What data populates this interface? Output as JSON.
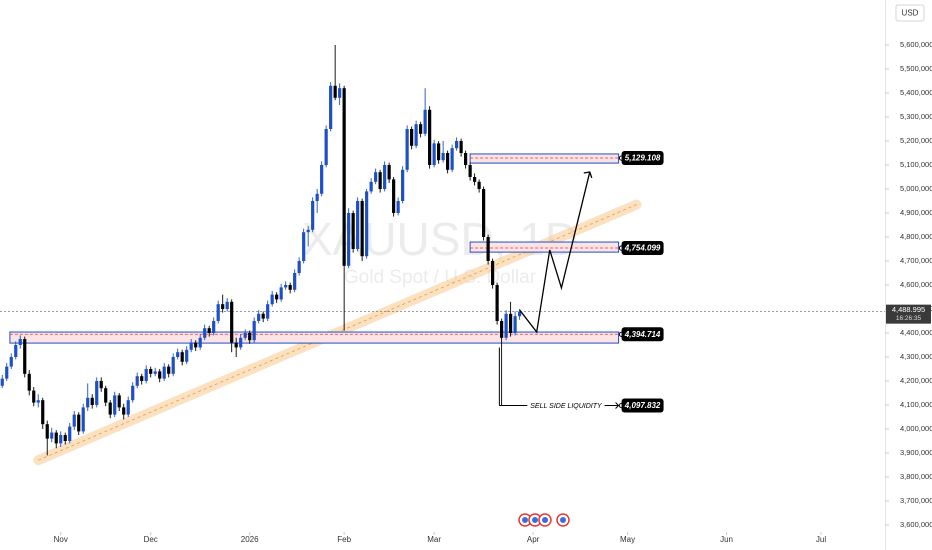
{
  "chart_data": {
    "type": "candlestick",
    "watermark": "XAUUSD, 1D",
    "watermark_subtitle": "Gold Spot / U.S. Dollar",
    "currency": "USD",
    "up_color": "#1f4fc5",
    "down_color": "#000000",
    "grid": false,
    "xlim": [
      -13.5,
      183
    ],
    "xticks": [
      {
        "value": 0,
        "label": "Nov"
      },
      {
        "value": 20,
        "label": "Dec"
      },
      {
        "value": 42,
        "label": "2026"
      },
      {
        "value": 63,
        "label": "Feb"
      },
      {
        "value": 83,
        "label": "Mar"
      },
      {
        "value": 105,
        "label": "Apr"
      },
      {
        "value": 126,
        "label": "May"
      },
      {
        "value": 148,
        "label": "Jun"
      },
      {
        "value": 169,
        "label": "Jul"
      }
    ],
    "ylim": [
      3550000,
      5750000
    ],
    "yticks": [
      {
        "value": 3600000,
        "label": "3,600,000"
      },
      {
        "value": 3700000,
        "label": "3,700,000"
      },
      {
        "value": 3800000,
        "label": "3,800,000"
      },
      {
        "value": 3900000,
        "label": "3,900,000"
      },
      {
        "value": 4000000,
        "label": "4,000,000"
      },
      {
        "value": 4100000,
        "label": "4,100,000"
      },
      {
        "value": 4200000,
        "label": "4,200,000"
      },
      {
        "value": 4300000,
        "label": "4,300,000"
      },
      {
        "value": 4400000,
        "label": "4,400,000"
      },
      {
        "value": 4500000,
        "label": "4,500,000"
      },
      {
        "value": 4600000,
        "label": "4,600,000"
      },
      {
        "value": 4700000,
        "label": "4,700,000"
      },
      {
        "value": 4800000,
        "label": "4,800,000"
      },
      {
        "value": 4900000,
        "label": "4,900,000"
      },
      {
        "value": 5000000,
        "label": "5,000,000"
      },
      {
        "value": 5100000,
        "label": "5,100,000"
      },
      {
        "value": 5200000,
        "label": "5,200,000"
      },
      {
        "value": 5300000,
        "label": "5,300,000"
      },
      {
        "value": 5400000,
        "label": "5,400,000"
      },
      {
        "value": 5500000,
        "label": "5,500,000"
      },
      {
        "value": 5600000,
        "label": "5,600,000"
      }
    ],
    "x": [
      -13,
      -12,
      -11,
      -10,
      -9,
      -8,
      -7,
      -6,
      -5,
      -4,
      -3,
      -2,
      -1,
      0,
      1,
      2,
      3,
      4,
      5,
      6,
      7,
      8,
      9,
      10,
      11,
      12,
      13,
      14,
      15,
      16,
      17,
      18,
      19,
      20,
      21,
      22,
      23,
      24,
      25,
      26,
      27,
      28,
      29,
      30,
      31,
      32,
      33,
      34,
      35,
      36,
      37,
      38,
      39,
      40,
      41,
      42,
      43,
      44,
      45,
      46,
      47,
      48,
      49,
      50,
      51,
      52,
      53,
      54,
      55,
      56,
      57,
      58,
      59,
      60,
      61,
      62,
      63,
      64,
      65,
      66,
      67,
      68,
      69,
      70,
      71,
      72,
      73,
      74,
      75,
      76,
      77,
      78,
      79,
      80,
      81,
      82,
      83,
      84,
      85,
      86,
      87,
      88,
      89,
      90,
      91,
      92,
      93,
      94,
      95,
      96,
      97,
      98,
      99,
      100,
      101,
      102
    ],
    "candles": [
      [
        4180000,
        4225000,
        4170000,
        4210000
      ],
      [
        4210000,
        4275000,
        4200000,
        4260000
      ],
      [
        4260000,
        4315000,
        4250000,
        4300000
      ],
      [
        4300000,
        4365000,
        4290000,
        4350000
      ],
      [
        4350000,
        4390000,
        4335000,
        4375000
      ],
      [
        4375000,
        4385000,
        4215000,
        4230000
      ],
      [
        4230000,
        4245000,
        4140000,
        4160000
      ],
      [
        4160000,
        4175000,
        4095000,
        4110000
      ],
      [
        4110000,
        4145000,
        4090000,
        4120000
      ],
      [
        4120000,
        4130000,
        4000000,
        4020000
      ],
      [
        4020000,
        4035000,
        3890000,
        3960000
      ],
      [
        3960000,
        4005000,
        3945000,
        3985000
      ],
      [
        3985000,
        3995000,
        3920000,
        3940000
      ],
      [
        3940000,
        3990000,
        3925000,
        3975000
      ],
      [
        3975000,
        3985000,
        3935000,
        3950000
      ],
      [
        3950000,
        4025000,
        3940000,
        4010000
      ],
      [
        4010000,
        4075000,
        3995000,
        4060000
      ],
      [
        4060000,
        4070000,
        3975000,
        3990000
      ],
      [
        3990000,
        4105000,
        3980000,
        4090000
      ],
      [
        4090000,
        4190000,
        4075000,
        4130000
      ],
      [
        4130000,
        4145000,
        4085000,
        4100000
      ],
      [
        4100000,
        4215000,
        4090000,
        4200000
      ],
      [
        4200000,
        4215000,
        4155000,
        4170000
      ],
      [
        4170000,
        4180000,
        4095000,
        4110000
      ],
      [
        4110000,
        4120000,
        4045000,
        4060000
      ],
      [
        4060000,
        4155000,
        4050000,
        4140000
      ],
      [
        4140000,
        4150000,
        4075000,
        4090000
      ],
      [
        4090000,
        4105000,
        4040000,
        4060000
      ],
      [
        4060000,
        4135000,
        4050000,
        4120000
      ],
      [
        4120000,
        4195000,
        4110000,
        4180000
      ],
      [
        4180000,
        4235000,
        4170000,
        4220000
      ],
      [
        4220000,
        4230000,
        4185000,
        4200000
      ],
      [
        4200000,
        4265000,
        4190000,
        4250000
      ],
      [
        4250000,
        4260000,
        4215000,
        4230000
      ],
      [
        4230000,
        4255000,
        4220000,
        4240000
      ],
      [
        4240000,
        4250000,
        4195000,
        4210000
      ],
      [
        4210000,
        4275000,
        4200000,
        4260000
      ],
      [
        4260000,
        4270000,
        4215000,
        4230000
      ],
      [
        4230000,
        4315000,
        4220000,
        4300000
      ],
      [
        4300000,
        4335000,
        4290000,
        4320000
      ],
      [
        4320000,
        4330000,
        4265000,
        4280000
      ],
      [
        4280000,
        4345000,
        4270000,
        4330000
      ],
      [
        4330000,
        4375000,
        4320000,
        4360000
      ],
      [
        4360000,
        4370000,
        4325000,
        4340000
      ],
      [
        4340000,
        4395000,
        4330000,
        4380000
      ],
      [
        4380000,
        4435000,
        4370000,
        4420000
      ],
      [
        4420000,
        4430000,
        4385000,
        4400000
      ],
      [
        4400000,
        4465000,
        4390000,
        4450000
      ],
      [
        4450000,
        4535000,
        4440000,
        4520000
      ],
      [
        4520000,
        4560000,
        4485000,
        4500000
      ],
      [
        4500000,
        4545000,
        4490000,
        4530000
      ],
      [
        4530000,
        4540000,
        4320000,
        4360000
      ],
      [
        4360000,
        4380000,
        4300000,
        4340000
      ],
      [
        4340000,
        4395000,
        4330000,
        4380000
      ],
      [
        4380000,
        4415000,
        4370000,
        4400000
      ],
      [
        4400000,
        4410000,
        4355000,
        4370000
      ],
      [
        4370000,
        4465000,
        4360000,
        4450000
      ],
      [
        4450000,
        4495000,
        4440000,
        4480000
      ],
      [
        4480000,
        4490000,
        4445000,
        4460000
      ],
      [
        4460000,
        4535000,
        4450000,
        4520000
      ],
      [
        4520000,
        4575000,
        4510000,
        4560000
      ],
      [
        4560000,
        4570000,
        4525000,
        4540000
      ],
      [
        4540000,
        4605000,
        4530000,
        4590000
      ],
      [
        4590000,
        4615000,
        4580000,
        4600000
      ],
      [
        4600000,
        4610000,
        4565000,
        4580000
      ],
      [
        4580000,
        4665000,
        4570000,
        4650000
      ],
      [
        4650000,
        4715000,
        4640000,
        4700000
      ],
      [
        4700000,
        4835000,
        4690000,
        4820000
      ],
      [
        4820000,
        4845000,
        4760000,
        4830000
      ],
      [
        4830000,
        4965000,
        4820000,
        4950000
      ],
      [
        4950000,
        5000000,
        4900000,
        4980000
      ],
      [
        4980000,
        5115000,
        4970000,
        5100000
      ],
      [
        5100000,
        5265000,
        5090000,
        5250000
      ],
      [
        5250000,
        5445000,
        5240000,
        5430000
      ],
      [
        5430000,
        5600000,
        5370000,
        5380000
      ],
      [
        5380000,
        5440000,
        5350000,
        5420000
      ],
      [
        5420000,
        5430000,
        4410000,
        4680000
      ],
      [
        4680000,
        4920000,
        4670000,
        4900000
      ],
      [
        4900000,
        4910000,
        4735000,
        4750000
      ],
      [
        4750000,
        4965000,
        4740000,
        4950000
      ],
      [
        4950000,
        4960000,
        4700000,
        4720000
      ],
      [
        4720000,
        5000000,
        4710000,
        4990000
      ],
      [
        4990000,
        5045000,
        4980000,
        5030000
      ],
      [
        5030000,
        5085000,
        5020000,
        5070000
      ],
      [
        5070000,
        5080000,
        4985000,
        5000000
      ],
      [
        5000000,
        5115000,
        4990000,
        5100000
      ],
      [
        5100000,
        5110000,
        5025000,
        5040000
      ],
      [
        5040000,
        5050000,
        4885000,
        4900000
      ],
      [
        4900000,
        4965000,
        4890000,
        4950000
      ],
      [
        4950000,
        5095000,
        4940000,
        5080000
      ],
      [
        5080000,
        5265000,
        5070000,
        5250000
      ],
      [
        5250000,
        5260000,
        5165000,
        5180000
      ],
      [
        5180000,
        5285000,
        5170000,
        5270000
      ],
      [
        5270000,
        5280000,
        5215000,
        5230000
      ],
      [
        5230000,
        5420000,
        5220000,
        5330000
      ],
      [
        5330000,
        5345000,
        5085000,
        5100000
      ],
      [
        5100000,
        5205000,
        5090000,
        5190000
      ],
      [
        5190000,
        5200000,
        5105000,
        5120000
      ],
      [
        5120000,
        5200000,
        5110000,
        5150000
      ],
      [
        5150000,
        5160000,
        5065000,
        5080000
      ],
      [
        5080000,
        5185000,
        5070000,
        5170000
      ],
      [
        5170000,
        5215000,
        5160000,
        5200000
      ],
      [
        5200000,
        5210000,
        5135000,
        5150000
      ],
      [
        5150000,
        5160000,
        5085000,
        5100000
      ],
      [
        5100000,
        5110000,
        5035000,
        5050000
      ],
      [
        5050000,
        5065000,
        5015000,
        5030000
      ],
      [
        5030000,
        5040000,
        4985000,
        5000000
      ],
      [
        5000000,
        5010000,
        4785000,
        4800000
      ],
      [
        4800000,
        4810000,
        4685000,
        4700000
      ],
      [
        4700000,
        4710000,
        4585000,
        4600000
      ],
      [
        4600000,
        4610000,
        4435000,
        4450000
      ],
      [
        4450000,
        4460000,
        4099000,
        4380000
      ],
      [
        4380000,
        4495000,
        4370000,
        4480000
      ],
      [
        4480000,
        4530000,
        4385000,
        4400000
      ],
      [
        4400000,
        4490000,
        4390000,
        4470000
      ],
      [
        4470000,
        4500000,
        4455000,
        4488995
      ]
    ],
    "last_price": {
      "value": 4488995,
      "label": "4,488.995"
    },
    "countdown": "16:26:35",
    "levels": [
      {
        "value": 5129108,
        "label": "5,129.108",
        "zone": [
          5108000,
          5146000
        ],
        "x_start": 91,
        "x_end": 124
      },
      {
        "value": 4754099,
        "label": "4,754.099",
        "zone": [
          4737000,
          4779000
        ],
        "x_start": 91,
        "x_end": 124
      },
      {
        "value": 4394714,
        "label": "4,394.714",
        "zone": [
          4358000,
          4404000
        ],
        "x_start": -11.3,
        "x_end": 124
      }
    ],
    "liquidity": {
      "value": 4097832,
      "label": "4,097.832",
      "text": "SELL SIDE LIQUIDITY",
      "x_start": 97.5,
      "x_end": 124
    },
    "trendline": {
      "x": [
        -5,
        128
      ],
      "values": [
        3870000,
        4935000
      ]
    },
    "projection": {
      "x": [
        102,
        105.8,
        108.7,
        111.3,
        117.6
      ],
      "values": [
        4496000,
        4404000,
        4746000,
        4588000,
        5071000
      ]
    }
  }
}
